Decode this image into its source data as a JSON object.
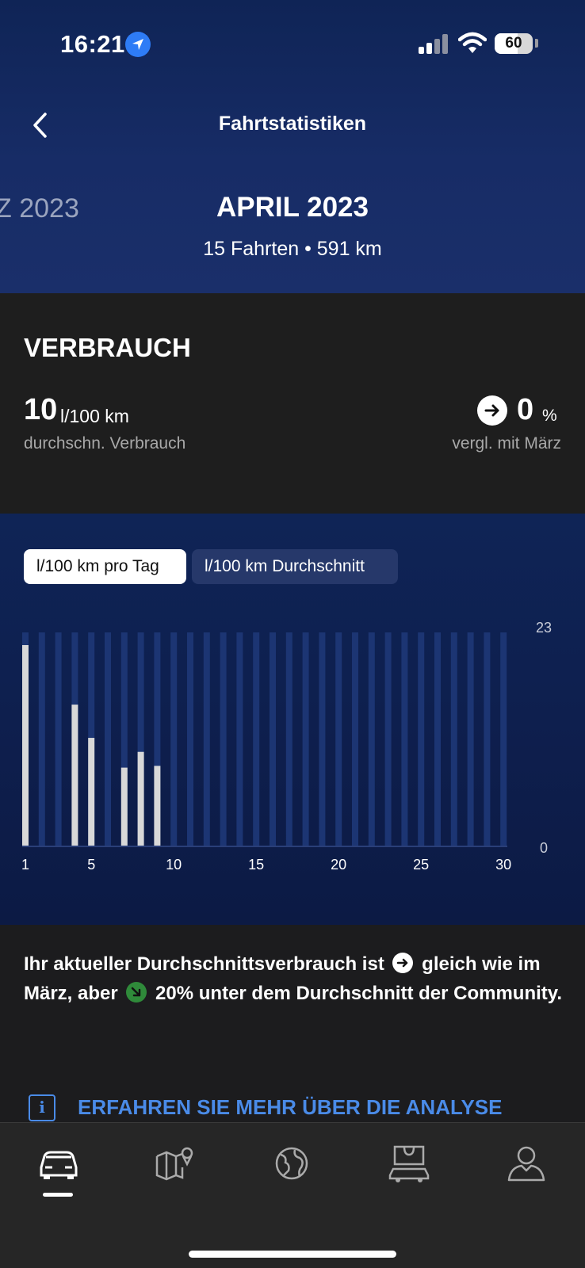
{
  "status_bar": {
    "time": "16:21",
    "battery": "60",
    "battery_level": 0.6
  },
  "header": {
    "title": "Fahrtstatistiken",
    "prev_month_partial": "Z 2023",
    "month": "APRIL 2023",
    "trips_summary": "15 Fahrten • 591 km"
  },
  "consumption": {
    "heading": "VERBRAUCH",
    "avg_value": "10",
    "avg_unit": "l/100 km",
    "avg_label": "durchschn. Verbrauch",
    "compare_value": "0",
    "compare_unit": "%",
    "compare_label": "vergl. mit März"
  },
  "tabs": {
    "per_day": "l/100 km pro Tag",
    "average": "l/100 km Durchschnitt",
    "selected": "per_day"
  },
  "chart_data": {
    "type": "bar",
    "x": [
      1,
      2,
      3,
      4,
      5,
      6,
      7,
      8,
      9,
      10,
      11,
      12,
      13,
      14,
      15,
      16,
      17,
      18,
      19,
      20,
      21,
      22,
      23,
      24,
      25,
      26,
      27,
      28,
      29,
      30
    ],
    "values": [
      23,
      null,
      null,
      16.2,
      12.4,
      null,
      9,
      10.8,
      9.2,
      null,
      null,
      null,
      null,
      null,
      null,
      null,
      null,
      null,
      null,
      null,
      null,
      null,
      null,
      null,
      null,
      null,
      null,
      null,
      null,
      null
    ],
    "xticks": [
      "1",
      "5",
      "10",
      "15",
      "20",
      "25",
      "30"
    ],
    "xtick_values": [
      1,
      5,
      10,
      15,
      20,
      25,
      30
    ],
    "ylim": [
      0,
      23
    ],
    "yticks": [
      "23",
      "0"
    ],
    "bar_color": "#d8d8d8",
    "empty_bar_color": "#1c3573"
  },
  "summary": {
    "part1": "Ihr aktueller Durchschnittsverbrauch ist ",
    "part2": " gleich wie im März, aber ",
    "part3": " 20% unter dem Durchschnitt der Community."
  },
  "learn_more": "ERFAHREN SIE MEHR ÜBER DIE ANALYSE",
  "nav": {
    "items": [
      "car-icon",
      "map-icon",
      "globe-icon",
      "shop-icon",
      "profile-icon"
    ],
    "active": "car-icon"
  }
}
